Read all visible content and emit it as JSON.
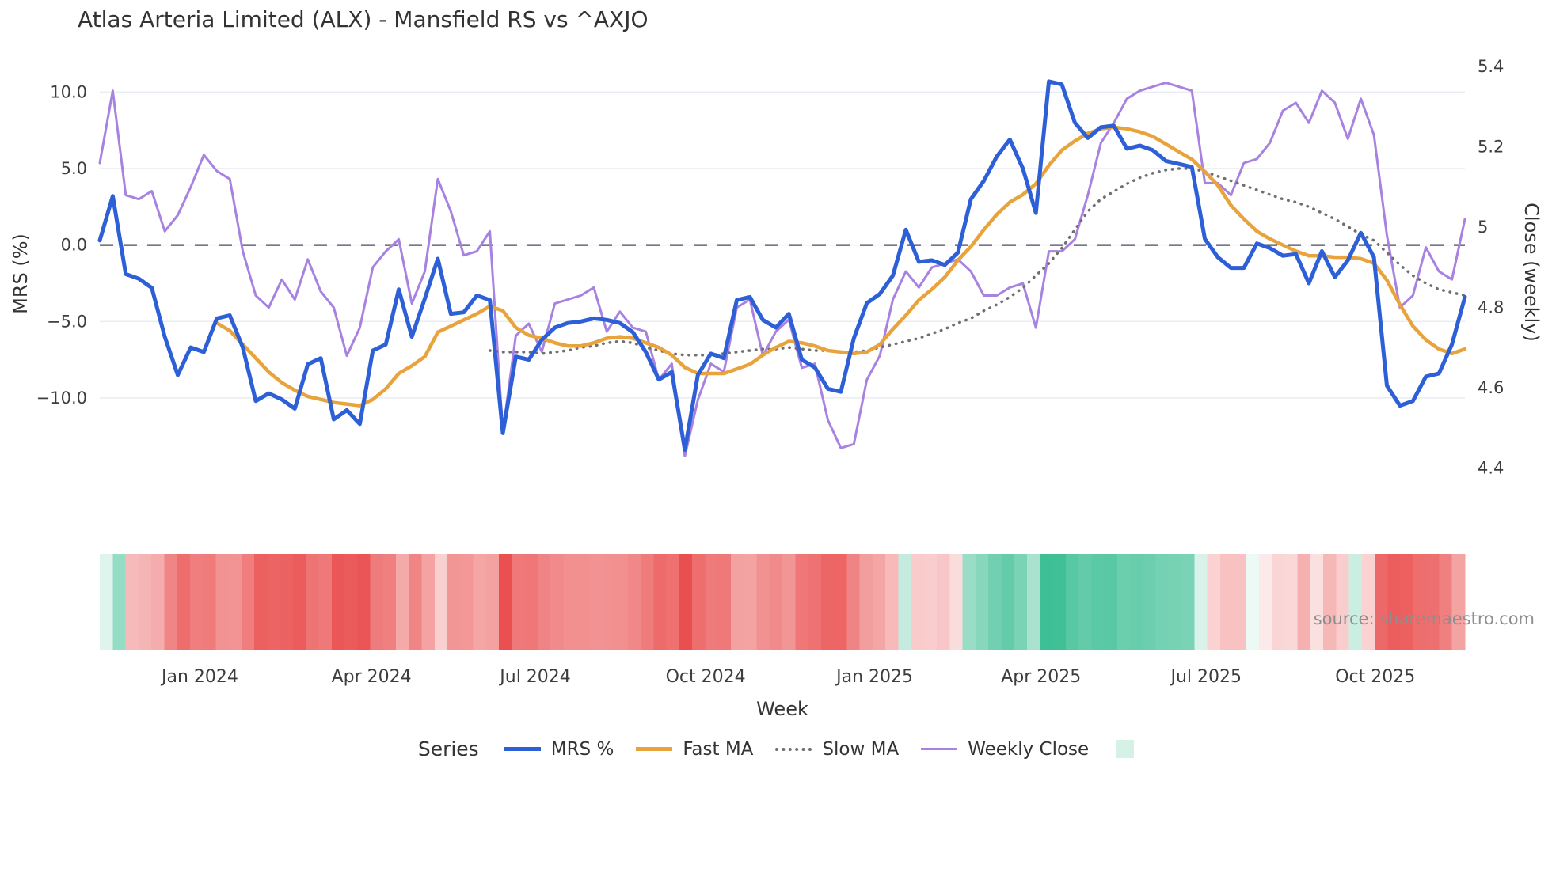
{
  "header": {
    "title": "Atlas Arteria Limited (ALX) - Mansfield RS vs ^AXJO"
  },
  "source": {
    "label": "source: sharemaestro.com"
  },
  "legend": {
    "title": "Series"
  },
  "chart_data": {
    "type": "line",
    "title": "Atlas Arteria Limited (ALX) - Mansfield RS vs ^AXJO",
    "xlabel": "Week",
    "ylabel_left": "MRS (%)",
    "ylabel_right": "Close (weekly)",
    "x_weeks": 106,
    "x_ticks": [
      {
        "label": "Jan 2024",
        "week": 7.7
      },
      {
        "label": "Apr 2024",
        "week": 20.9
      },
      {
        "label": "Jul 2024",
        "week": 33.5
      },
      {
        "label": "Oct 2024",
        "week": 46.6
      },
      {
        "label": "Jan 2025",
        "week": 59.6
      },
      {
        "label": "Apr 2025",
        "week": 72.4
      },
      {
        "label": "Jul 2025",
        "week": 85.1
      },
      {
        "label": "Oct 2025",
        "week": 98.1
      }
    ],
    "y_left_ticks": [
      {
        "label": "10.0",
        "value": 10
      },
      {
        "label": "5.0",
        "value": 5
      },
      {
        "label": "0.0",
        "value": 0
      },
      {
        "label": "−5.0",
        "value": -5
      },
      {
        "label": "−10.0",
        "value": -10
      }
    ],
    "y_right_ticks": [
      {
        "label": "5.4",
        "value": 5.4
      },
      {
        "label": "5.2",
        "value": 5.2
      },
      {
        "label": "5",
        "value": 5.0
      },
      {
        "label": "4.8",
        "value": 4.8
      },
      {
        "label": "4.6",
        "value": 4.6
      },
      {
        "label": "4.4",
        "value": 4.4
      }
    ],
    "ylim_left": [
      -15.8,
      12.4
    ],
    "ylim_right": [
      4.354,
      5.428
    ],
    "grid": true,
    "legend_position": "bottom",
    "zero_line": {
      "axis": "left",
      "value": 0,
      "color": "#474d63"
    },
    "series": [
      {
        "name": "MRS %",
        "axis": "left",
        "color": "#2d5fd7",
        "style": "solid",
        "width": 5,
        "start_week": 0,
        "values": [
          0.3,
          3.2,
          -1.9,
          -2.2,
          -2.8,
          -6.0,
          -8.5,
          -6.7,
          -7.0,
          -4.8,
          -4.6,
          -6.7,
          -10.2,
          -9.7,
          -10.1,
          -10.7,
          -7.8,
          -7.4,
          -11.4,
          -10.8,
          -11.7,
          -6.9,
          -6.5,
          -2.9,
          -6.0,
          -3.5,
          -0.9,
          -4.5,
          -4.4,
          -3.3,
          -3.6,
          -12.3,
          -7.3,
          -7.5,
          -6.2,
          -5.4,
          -5.1,
          -5.0,
          -4.8,
          -4.9,
          -5.1,
          -5.7,
          -7.0,
          -8.8,
          -8.3,
          -13.4,
          -8.5,
          -7.1,
          -7.4,
          -3.6,
          -3.4,
          -4.9,
          -5.4,
          -4.5,
          -7.5,
          -8.0,
          -9.4,
          -9.6,
          -6.1,
          -3.8,
          -3.2,
          -2.0,
          1.0,
          -1.1,
          -1.0,
          -1.3,
          -0.5,
          3.0,
          4.2,
          5.8,
          6.9,
          5.0,
          2.1,
          10.7,
          10.5,
          8.0,
          7.0,
          7.7,
          7.8,
          6.3,
          6.5,
          6.2,
          5.5,
          5.3,
          5.1,
          0.4,
          -0.8,
          -1.5,
          -1.5,
          0.1,
          -0.2,
          -0.7,
          -0.6,
          -2.5,
          -0.4,
          -2.1,
          -1.0,
          0.8,
          -0.8,
          -9.2,
          -10.5,
          -10.2,
          -8.6,
          -8.4,
          -6.5,
          -3.4
        ]
      },
      {
        "name": "Fast MA",
        "axis": "left",
        "color": "#e8a33c",
        "style": "solid",
        "width": 4.5,
        "start_week": 9,
        "values": [
          -5.1,
          -5.6,
          -6.5,
          -7.4,
          -8.3,
          -9.0,
          -9.5,
          -9.9,
          -10.1,
          -10.3,
          -10.4,
          -10.5,
          -10.1,
          -9.4,
          -8.4,
          -7.9,
          -7.3,
          -5.7,
          -5.3,
          -4.9,
          -4.5,
          -4.0,
          -4.3,
          -5.4,
          -5.9,
          -6.1,
          -6.4,
          -6.6,
          -6.6,
          -6.4,
          -6.1,
          -6.0,
          -6.1,
          -6.4,
          -6.7,
          -7.2,
          -8.0,
          -8.4,
          -8.4,
          -8.4,
          -8.1,
          -7.8,
          -7.2,
          -6.7,
          -6.3,
          -6.4,
          -6.6,
          -6.9,
          -7.0,
          -7.1,
          -7.0,
          -6.5,
          -5.5,
          -4.6,
          -3.6,
          -2.9,
          -2.1,
          -1.0,
          -0.1,
          1.0,
          2.0,
          2.8,
          3.3,
          4.0,
          5.2,
          6.2,
          6.8,
          7.3,
          7.6,
          7.7,
          7.6,
          7.4,
          7.1,
          6.6,
          6.1,
          5.6,
          4.8,
          3.9,
          2.6,
          1.7,
          0.9,
          0.4,
          0.0,
          -0.4,
          -0.7,
          -0.7,
          -0.8,
          -0.8,
          -0.9,
          -1.2,
          -2.3,
          -3.9,
          -5.3,
          -6.2,
          -6.8,
          -7.1,
          -6.8
        ]
      },
      {
        "name": "Slow MA",
        "axis": "left",
        "color": "#6f6f6f",
        "style": "dotted",
        "width": 3.5,
        "start_week": 30,
        "values": [
          -6.9,
          -7.0,
          -7.0,
          -7.0,
          -7.1,
          -7.0,
          -6.9,
          -6.7,
          -6.6,
          -6.4,
          -6.3,
          -6.4,
          -6.7,
          -6.9,
          -7.1,
          -7.2,
          -7.2,
          -7.2,
          -7.1,
          -7.0,
          -6.9,
          -6.8,
          -6.8,
          -6.7,
          -6.8,
          -6.9,
          -6.9,
          -7.0,
          -7.0,
          -6.9,
          -6.7,
          -6.5,
          -6.3,
          -6.1,
          -5.8,
          -5.5,
          -5.1,
          -4.8,
          -4.3,
          -3.9,
          -3.4,
          -2.8,
          -2.0,
          -1.2,
          -0.2,
          1.0,
          2.2,
          3.0,
          3.5,
          4.0,
          4.4,
          4.7,
          4.9,
          5.0,
          5.0,
          4.8,
          4.5,
          4.2,
          3.9,
          3.6,
          3.3,
          3.0,
          2.8,
          2.5,
          2.1,
          1.7,
          1.2,
          0.7,
          0.3,
          -0.5,
          -1.3,
          -2.0,
          -2.5,
          -2.9,
          -3.1,
          -3.3
        ]
      },
      {
        "name": "Weekly Close",
        "axis": "right",
        "color": "#a782e0",
        "style": "solid",
        "width": 3,
        "start_week": 0,
        "values": [
          5.16,
          5.34,
          5.08,
          5.07,
          5.09,
          4.99,
          5.03,
          5.1,
          5.18,
          5.14,
          5.12,
          4.94,
          4.83,
          4.8,
          4.87,
          4.82,
          4.92,
          4.84,
          4.8,
          4.68,
          4.75,
          4.9,
          4.94,
          4.97,
          4.81,
          4.89,
          5.12,
          5.04,
          4.93,
          4.94,
          4.99,
          4.49,
          4.73,
          4.76,
          4.69,
          4.81,
          4.82,
          4.83,
          4.85,
          4.74,
          4.79,
          4.75,
          4.74,
          4.62,
          4.66,
          4.43,
          4.57,
          4.66,
          4.64,
          4.8,
          4.82,
          4.68,
          4.74,
          4.77,
          4.65,
          4.66,
          4.52,
          4.45,
          4.46,
          4.62,
          4.68,
          4.82,
          4.89,
          4.85,
          4.9,
          4.91,
          4.92,
          4.89,
          4.83,
          4.83,
          4.85,
          4.86,
          4.75,
          4.94,
          4.94,
          4.97,
          5.08,
          5.21,
          5.26,
          5.32,
          5.34,
          5.35,
          5.36,
          5.35,
          5.34,
          5.11,
          5.11,
          5.08,
          5.16,
          5.17,
          5.21,
          5.29,
          5.31,
          5.26,
          5.34,
          5.31,
          5.22,
          5.32,
          5.23,
          4.98,
          4.8,
          4.83,
          4.95,
          4.89,
          4.87,
          5.02
        ]
      }
    ],
    "heatmap": {
      "metric": "MRS %",
      "positive_color": "#2eba8c",
      "negative_color": "#ea4f4f",
      "legend_swatch_color": "#d6f1e6",
      "max_abs": 12.5
    }
  }
}
